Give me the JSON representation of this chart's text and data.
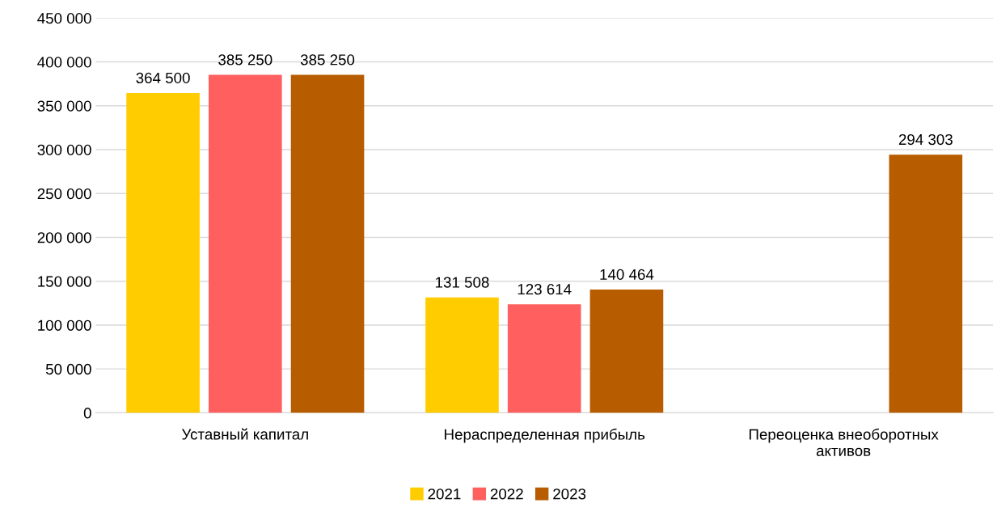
{
  "chart_data": {
    "type": "bar",
    "categories": [
      "Уставный капитал",
      "Нераспределенная прибыль",
      "Переоценка внеоборотных активов"
    ],
    "series": [
      {
        "name": "2021",
        "color": "#ffcc00",
        "values": [
          364500,
          131508,
          null
        ],
        "value_labels": [
          "364 500",
          "131 508",
          null
        ]
      },
      {
        "name": "2022",
        "color": "#ff5f5f",
        "values": [
          385250,
          123614,
          null
        ],
        "value_labels": [
          "385 250",
          "123 614",
          null
        ]
      },
      {
        "name": "2023",
        "color": "#b85c00",
        "values": [
          385250,
          140464,
          294303
        ],
        "value_labels": [
          "385 250",
          "140 464",
          "294 303"
        ]
      }
    ],
    "ylim": [
      0,
      450000
    ],
    "yticks": [
      {
        "value": 0,
        "label": "0"
      },
      {
        "value": 50000,
        "label": "50 000"
      },
      {
        "value": 100000,
        "label": "100 000"
      },
      {
        "value": 150000,
        "label": "150 000"
      },
      {
        "value": 200000,
        "label": "200 000"
      },
      {
        "value": 250000,
        "label": "250 000"
      },
      {
        "value": 300000,
        "label": "300 000"
      },
      {
        "value": 350000,
        "label": "350 000"
      },
      {
        "value": 400000,
        "label": "400 000"
      },
      {
        "value": 450000,
        "label": "450 000"
      }
    ],
    "grid": "y",
    "legend": "bottom"
  }
}
